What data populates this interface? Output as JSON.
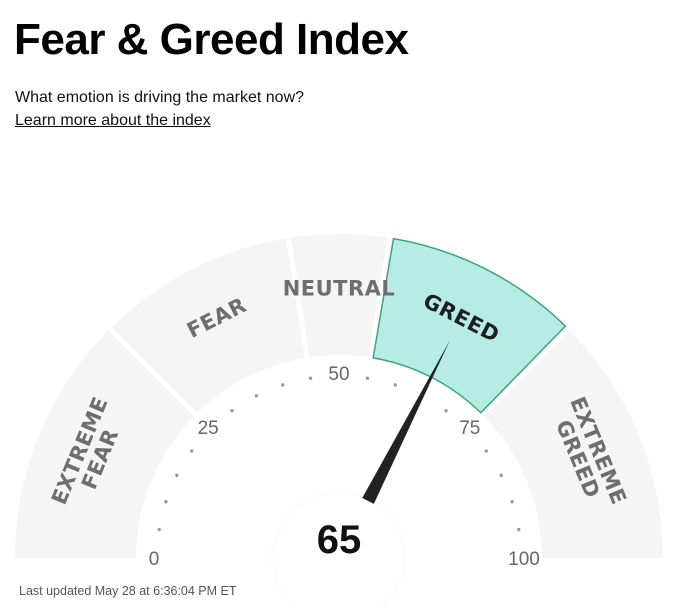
{
  "header": {
    "title": "Fear & Greed Index",
    "question": "What emotion is driving the market now?",
    "learn_more": "Learn more about the index"
  },
  "gauge": {
    "value": 65,
    "score_text": "65",
    "min": 0,
    "max": 100,
    "active_segment": "greed",
    "segments": [
      {
        "key": "extreme-fear",
        "lines": [
          "EXTREME",
          "FEAR"
        ],
        "from": 0,
        "to": 25
      },
      {
        "key": "fear",
        "lines": [
          "FEAR"
        ],
        "from": 25,
        "to": 45
      },
      {
        "key": "neutral",
        "lines": [
          "NEUTRAL"
        ],
        "from": 45,
        "to": 55
      },
      {
        "key": "greed",
        "lines": [
          "GREED"
        ],
        "from": 55,
        "to": 75
      },
      {
        "key": "extreme-greed",
        "lines": [
          "EXTREME",
          "GREED"
        ],
        "from": 75,
        "to": 100
      }
    ],
    "scale_labels": [
      {
        "value": 0,
        "text": "0"
      },
      {
        "value": 25,
        "text": "25"
      },
      {
        "value": 50,
        "text": "50"
      },
      {
        "value": 75,
        "text": "75"
      },
      {
        "value": 100,
        "text": "100"
      }
    ],
    "colors": {
      "segment": "#f5f5f5",
      "active_fill": "#b5ede6",
      "active_stroke": "#3aa776",
      "needle": "#222222",
      "dots": "#999999"
    }
  },
  "footer": {
    "last_updated": "Last updated May 28 at 6:36:04 PM ET"
  }
}
